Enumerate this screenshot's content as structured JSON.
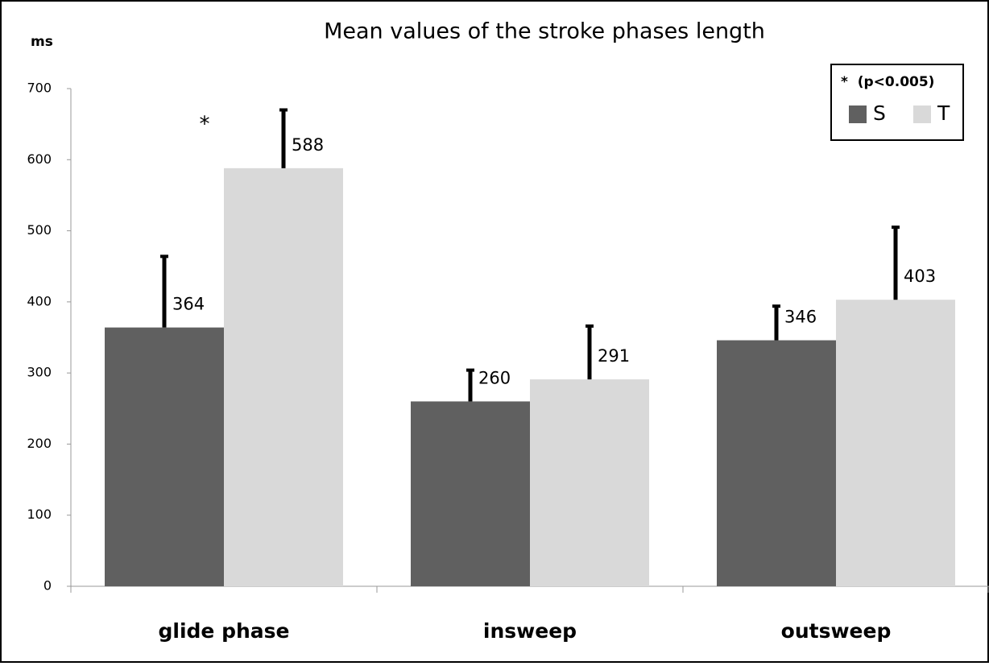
{
  "chart_data": {
    "type": "bar",
    "title": "Mean values of the stroke phases length",
    "y_label": "ms",
    "categories": [
      "glide phase",
      "insweep",
      "outsweep"
    ],
    "series": [
      {
        "name": "S",
        "color": "#606060",
        "values": [
          364,
          260,
          346
        ],
        "errors": [
          100,
          44,
          48
        ]
      },
      {
        "name": "T",
        "color": "#d9d9d9",
        "values": [
          588,
          291,
          403
        ],
        "errors": [
          82,
          75,
          102
        ]
      }
    ],
    "annotations": [
      {
        "text": "*",
        "category": 0
      }
    ],
    "legend_title": "*  (p<0.005)",
    "legend": "top-right",
    "grid": false,
    "ylim": [
      0,
      700
    ],
    "yticks": [
      0,
      100,
      200,
      300,
      400,
      500,
      600,
      700
    ]
  }
}
